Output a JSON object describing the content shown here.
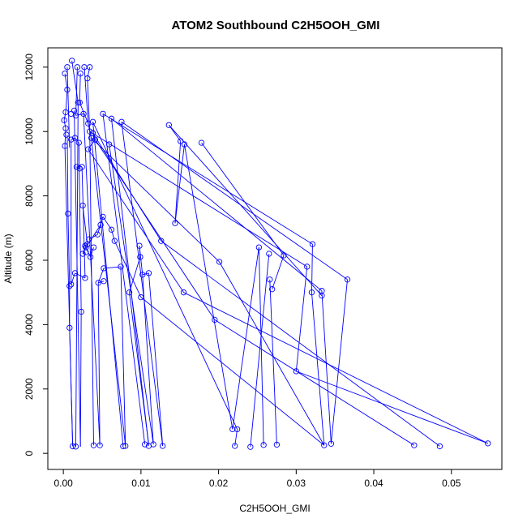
{
  "chart_data": {
    "type": "scatter",
    "title": "ATOM2 Southbound C2H5OOH_GMI",
    "xlabel": "C2H5OOH_GMI",
    "ylabel": "Altitude (m)",
    "xlim": [
      -0.002,
      0.0565
    ],
    "ylim": [
      -500,
      12600
    ],
    "xticks": [
      0.0,
      0.01,
      0.02,
      0.03,
      0.04,
      0.05
    ],
    "xtick_labels": [
      "0.00",
      "0.01",
      "0.02",
      "0.03",
      "0.04",
      "0.05"
    ],
    "yticks": [
      0,
      2000,
      4000,
      6000,
      8000,
      10000,
      12000
    ],
    "ytick_labels": [
      "0",
      "2000",
      "4000",
      "6000",
      "8000",
      "10000",
      "12000"
    ],
    "grid": false,
    "connected": true,
    "color": "#0000ff",
    "series": [
      {
        "points": [
          [
            0.0011,
            12200
          ],
          [
            0.0005,
            12000
          ],
          [
            0.0002,
            11800
          ],
          [
            0.0005,
            11300
          ],
          [
            0.0003,
            10600
          ],
          [
            0.0001,
            10350
          ],
          [
            0.0003,
            10100
          ],
          [
            0.0002,
            9550
          ],
          [
            0.0004,
            9900
          ],
          [
            0.0012,
            220
          ],
          [
            0.0016,
            210
          ],
          [
            0.0022,
            11800
          ],
          [
            0.0018,
            12000
          ],
          [
            0.0027,
            12000
          ],
          [
            0.0034,
            12000
          ],
          [
            0.0031,
            11650
          ],
          [
            0.0019,
            10900
          ],
          [
            0.0016,
            10500
          ],
          [
            0.0026,
            10550
          ],
          [
            0.0032,
            10250
          ],
          [
            0.0034,
            10000
          ],
          [
            0.001,
            9750
          ],
          [
            0.0014,
            10650
          ],
          [
            0.001,
            10550
          ],
          [
            0.0021,
            10900
          ],
          [
            0.0038,
            10300
          ],
          [
            0.0036,
            9800
          ],
          [
            0.0051,
            10550
          ],
          [
            0.0062,
            10400
          ],
          [
            0.0075,
            10300
          ],
          [
            0.0059,
            9600
          ],
          [
            0.0021,
            8850
          ],
          [
            0.0017,
            8900
          ],
          [
            0.0024,
            8900
          ],
          [
            0.0039,
            250
          ],
          [
            0.0047,
            250
          ],
          [
            0.0077,
            220
          ],
          [
            0.008,
            230
          ],
          [
            0.0105,
            280
          ],
          [
            0.011,
            230
          ],
          [
            0.0116,
            280
          ],
          [
            0.0128,
            230
          ],
          [
            0.0136,
            10200
          ],
          [
            0.0151,
            9700
          ],
          [
            0.0156,
            9600
          ],
          [
            0.0144,
            7150
          ],
          [
            0.0178,
            9650
          ],
          [
            0.0218,
            750
          ],
          [
            0.0224,
            750
          ],
          [
            0.0221,
            230
          ],
          [
            0.0241,
            200
          ],
          [
            0.0258,
            260
          ],
          [
            0.0275,
            270
          ],
          [
            0.0252,
            6400
          ],
          [
            0.0265,
            6200
          ],
          [
            0.0266,
            5400
          ],
          [
            0.0269,
            5100
          ],
          [
            0.0284,
            6150
          ],
          [
            0.0314,
            5800
          ],
          [
            0.0321,
            6500
          ],
          [
            0.032,
            5000
          ],
          [
            0.0333,
            5050
          ],
          [
            0.0333,
            4900
          ],
          [
            0.0366,
            5400
          ],
          [
            0.0336,
            250
          ],
          [
            0.0345,
            300
          ],
          [
            0.0452,
            250
          ],
          [
            0.0485,
            220
          ],
          [
            0.0547,
            310
          ],
          [
            0.03,
            2550
          ],
          [
            0.0201,
            5950
          ],
          [
            0.0195,
            4150
          ],
          [
            0.0126,
            6600
          ],
          [
            0.0155,
            5000
          ],
          [
            0.01,
            4850
          ],
          [
            0.0099,
            6100
          ],
          [
            0.0098,
            6450
          ],
          [
            0.0102,
            5550
          ],
          [
            0.011,
            5600
          ],
          [
            0.0085,
            5000
          ],
          [
            0.0074,
            5800
          ],
          [
            0.0052,
            5750
          ],
          [
            0.0045,
            5300
          ],
          [
            0.0052,
            5350
          ],
          [
            0.0028,
            5450
          ],
          [
            0.0015,
            5600
          ],
          [
            0.001,
            5250
          ],
          [
            0.0008,
            5200
          ],
          [
            0.0008,
            3900
          ],
          [
            0.0023,
            4400
          ],
          [
            0.0006,
            7450
          ],
          [
            0.0025,
            7700
          ],
          [
            0.0031,
            6500
          ],
          [
            0.0028,
            6450
          ],
          [
            0.0035,
            6100
          ],
          [
            0.0039,
            6400
          ],
          [
            0.0029,
            6250
          ],
          [
            0.0033,
            6650
          ],
          [
            0.0044,
            6800
          ],
          [
            0.0051,
            7350
          ],
          [
            0.0062,
            6950
          ],
          [
            0.0066,
            6600
          ],
          [
            0.0048,
            7100
          ],
          [
            0.0029,
            6400
          ],
          [
            0.0025,
            6200
          ],
          [
            0.0032,
            9450
          ],
          [
            0.0041,
            9750
          ],
          [
            0.0038,
            9950
          ],
          [
            0.002,
            9650
          ],
          [
            0.0015,
            9800
          ]
        ]
      }
    ],
    "segments": [
      [
        0.0002,
        11800,
        0.0005,
        11300
      ],
      [
        0.0005,
        11300,
        0.0003,
        10600
      ],
      [
        0.0003,
        10600,
        0.0001,
        10350
      ],
      [
        0.0001,
        10350,
        0.0003,
        10100
      ],
      [
        0.0003,
        10100,
        0.0002,
        9550
      ],
      [
        0.0002,
        9550,
        0.0012,
        220
      ],
      [
        0.0011,
        12200,
        0.0019,
        10900
      ],
      [
        0.0019,
        10900,
        0.0016,
        210
      ],
      [
        0.0022,
        11800,
        0.0021,
        10900
      ],
      [
        0.0027,
        12000,
        0.0032,
        10250
      ],
      [
        0.0034,
        12000,
        0.0031,
        11650
      ],
      [
        0.0031,
        11650,
        0.0034,
        10000
      ],
      [
        0.0034,
        10000,
        0.0039,
        250
      ],
      [
        0.0014,
        10650,
        0.0022,
        210
      ],
      [
        0.0026,
        10550,
        0.0047,
        250
      ],
      [
        0.0038,
        10300,
        0.0077,
        220
      ],
      [
        0.0036,
        9800,
        0.008,
        230
      ],
      [
        0.0051,
        10550,
        0.0105,
        280
      ],
      [
        0.0062,
        10400,
        0.011,
        230
      ],
      [
        0.0075,
        10300,
        0.0128,
        230
      ],
      [
        0.0059,
        9600,
        0.0116,
        280
      ],
      [
        0.0136,
        10200,
        0.0151,
        9700
      ],
      [
        0.0151,
        9700,
        0.0144,
        7150
      ],
      [
        0.0144,
        7150,
        0.0156,
        9600
      ],
      [
        0.0178,
        9650,
        0.0284,
        6150
      ],
      [
        0.0156,
        9600,
        0.0218,
        750
      ],
      [
        0.0038,
        10300,
        0.0224,
        750
      ],
      [
        0.0224,
        750,
        0.0221,
        230
      ],
      [
        0.0218,
        750,
        0.0252,
        6400
      ],
      [
        0.0252,
        6400,
        0.0258,
        260
      ],
      [
        0.0265,
        6200,
        0.0241,
        200
      ],
      [
        0.0266,
        5400,
        0.0275,
        270
      ],
      [
        0.0284,
        6150,
        0.0269,
        5100
      ],
      [
        0.0314,
        5800,
        0.03,
        2550
      ],
      [
        0.0321,
        6500,
        0.032,
        5000
      ],
      [
        0.032,
        5000,
        0.0336,
        250
      ],
      [
        0.0333,
        5050,
        0.0345,
        300
      ],
      [
        0.0366,
        5400,
        0.0345,
        300
      ],
      [
        0.03,
        2550,
        0.0547,
        310
      ],
      [
        0.0201,
        5950,
        0.0336,
        250
      ],
      [
        0.0195,
        4150,
        0.0452,
        250
      ],
      [
        0.0126,
        6600,
        0.0485,
        220
      ],
      [
        0.0155,
        5000,
        0.0547,
        310
      ],
      [
        0.01,
        4850,
        0.0336,
        250
      ],
      [
        0.0051,
        10550,
        0.0321,
        6500
      ],
      [
        0.0062,
        10400,
        0.0333,
        5050
      ],
      [
        0.0075,
        10300,
        0.0366,
        5400
      ],
      [
        0.0136,
        10200,
        0.0333,
        4900
      ],
      [
        0.0034,
        10000,
        0.0314,
        5800
      ],
      [
        0.0036,
        9800,
        0.0201,
        5950
      ],
      [
        0.0041,
        9750,
        0.0195,
        4150
      ],
      [
        0.0032,
        9450,
        0.0155,
        5000
      ],
      [
        0.0038,
        9950,
        0.0126,
        6600
      ],
      [
        0.0099,
        6100,
        0.0085,
        5000
      ],
      [
        0.0098,
        6450,
        0.0102,
        5550
      ],
      [
        0.0102,
        5550,
        0.011,
        5600
      ],
      [
        0.0074,
        5800,
        0.0052,
        5750
      ],
      [
        0.0052,
        5750,
        0.0045,
        5300
      ],
      [
        0.0045,
        5300,
        0.0052,
        5350
      ],
      [
        0.0028,
        5450,
        0.0015,
        5600
      ],
      [
        0.0015,
        5600,
        0.001,
        5250
      ],
      [
        0.0008,
        5200,
        0.0008,
        3900
      ],
      [
        0.0008,
        3900,
        0.0012,
        220
      ],
      [
        0.0023,
        4400,
        0.0022,
        210
      ],
      [
        0.0006,
        7450,
        0.0005,
        9900
      ],
      [
        0.0025,
        7700,
        0.0031,
        6500
      ],
      [
        0.0031,
        6500,
        0.0028,
        6450
      ],
      [
        0.0028,
        6450,
        0.0035,
        6100
      ],
      [
        0.0035,
        6100,
        0.0039,
        6400
      ],
      [
        0.0033,
        6650,
        0.0044,
        6800
      ],
      [
        0.0044,
        6800,
        0.0051,
        7350
      ],
      [
        0.0051,
        7350,
        0.0062,
        6950
      ],
      [
        0.0062,
        6950,
        0.0066,
        6600
      ],
      [
        0.0048,
        7100,
        0.0029,
        6400
      ],
      [
        0.0029,
        6400,
        0.0025,
        6200
      ],
      [
        0.0032,
        9450,
        0.0041,
        9750
      ],
      [
        0.0041,
        9750,
        0.0038,
        9950
      ],
      [
        0.002,
        9650,
        0.0015,
        9800
      ],
      [
        0.0015,
        9800,
        0.001,
        9750
      ],
      [
        0.0021,
        8850,
        0.0017,
        8900
      ],
      [
        0.0017,
        8900,
        0.0024,
        8900
      ],
      [
        0.0024,
        8900,
        0.0028,
        5450
      ],
      [
        0.0066,
        6600,
        0.01,
        4850
      ],
      [
        0.0085,
        5000,
        0.011,
        280
      ],
      [
        0.0074,
        5800,
        0.008,
        230
      ],
      [
        0.0045,
        5300,
        0.0047,
        250
      ],
      [
        0.001,
        9750,
        0.001,
        5250
      ],
      [
        0.0006,
        7450,
        0.0008,
        5200
      ],
      [
        0.002,
        9650,
        0.0023,
        4400
      ],
      [
        0.0005,
        12000,
        0.0008,
        9500
      ],
      [
        0.0018,
        12000,
        0.0016,
        10500
      ],
      [
        0.0016,
        10500,
        0.0026,
        10550
      ],
      [
        0.0021,
        10900,
        0.0032,
        10250
      ],
      [
        0.0032,
        10250,
        0.0036,
        9800
      ],
      [
        0.0099,
        6100,
        0.0098,
        6450
      ],
      [
        0.0102,
        5550,
        0.0116,
        280
      ],
      [
        0.011,
        5600,
        0.0128,
        230
      ]
    ]
  }
}
